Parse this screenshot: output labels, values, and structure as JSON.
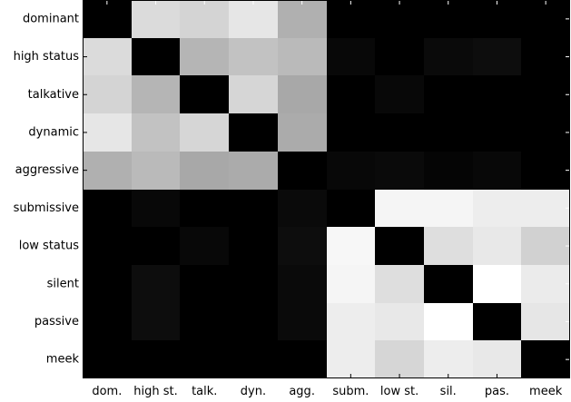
{
  "chart_data": {
    "type": "heatmap",
    "title": "",
    "xlabel": "",
    "ylabel": "",
    "colormap": "grayscale",
    "grid": false,
    "legend": "none",
    "value_range": [
      0,
      1
    ],
    "x_labels": [
      "dom.",
      "high st.",
      "talk.",
      "dyn.",
      "agg.",
      "subm.",
      "low st.",
      "sil.",
      "pas.",
      "meek"
    ],
    "y_labels": [
      "dominant",
      "high status",
      "talkative",
      "dynamic",
      "aggressive",
      "submissive",
      "low status",
      "silent",
      "passive",
      "meek"
    ],
    "values": [
      [
        0.0,
        0.86,
        0.83,
        0.9,
        0.69,
        0.0,
        0.0,
        0.0,
        0.0,
        0.0
      ],
      [
        0.86,
        0.0,
        0.71,
        0.76,
        0.73,
        0.03,
        0.0,
        0.04,
        0.05,
        0.0
      ],
      [
        0.83,
        0.71,
        0.0,
        0.84,
        0.66,
        0.0,
        0.03,
        0.0,
        0.0,
        0.0
      ],
      [
        0.9,
        0.76,
        0.84,
        0.0,
        0.67,
        0.0,
        0.0,
        0.0,
        0.0,
        0.0
      ],
      [
        0.69,
        0.73,
        0.66,
        0.67,
        0.0,
        0.03,
        0.04,
        0.02,
        0.03,
        0.0
      ],
      [
        0.0,
        0.03,
        0.0,
        0.0,
        0.04,
        0.0,
        0.96,
        0.96,
        0.93,
        0.93
      ],
      [
        0.0,
        0.0,
        0.03,
        0.0,
        0.05,
        0.97,
        0.0,
        0.87,
        0.91,
        0.82
      ],
      [
        0.0,
        0.05,
        0.0,
        0.0,
        0.04,
        0.96,
        0.87,
        0.0,
        1.0,
        0.92
      ],
      [
        0.0,
        0.05,
        0.0,
        0.0,
        0.04,
        0.93,
        0.91,
        1.0,
        0.0,
        0.9
      ],
      [
        0.0,
        0.0,
        0.0,
        0.0,
        0.0,
        0.93,
        0.84,
        0.93,
        0.91,
        0.0
      ]
    ]
  }
}
